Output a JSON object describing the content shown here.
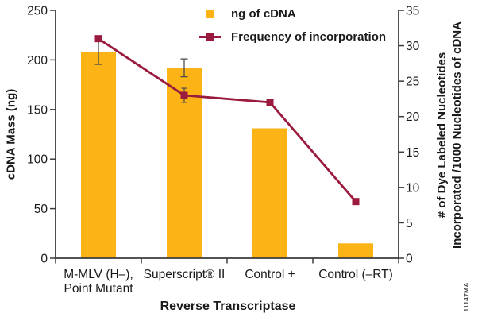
{
  "figure_id": "11147MA",
  "colors": {
    "bar": "#FBB316",
    "line": "#9A1B3E",
    "error_bar": "#4D4D4D",
    "axis": "#3C3C3C",
    "text": "#1A1A1A"
  },
  "chart_data": {
    "type": "bar-line-combo",
    "grid": false,
    "legend_position": "top-right",
    "x_axis": {
      "title": "Reverse Transcriptase",
      "categories": [
        "M-MLV (H–),\nPoint Mutant",
        "Superscript® II",
        "Control +",
        "Control (–RT)"
      ]
    },
    "left_axis": {
      "title": "cDNA Mass (ng)",
      "min": 0,
      "max": 250,
      "step": 50,
      "tick_labels": [
        "0",
        "50",
        "100",
        "150",
        "200",
        "250"
      ]
    },
    "right_axis": {
      "title_line1": "# of Dye Labeled Nucleotides",
      "title_line2": "Incorporated /1000 Nucleotides of cDNA",
      "min": 0,
      "max": 35,
      "step": 5,
      "tick_labels": [
        "0",
        "5",
        "10",
        "15",
        "20",
        "25",
        "30",
        "35"
      ]
    },
    "series": [
      {
        "name": "ng of cDNA",
        "type": "bar",
        "axis": "left",
        "values": [
          208,
          192,
          131,
          15
        ],
        "errors": [
          12.5,
          9,
          null,
          null
        ]
      },
      {
        "name": "Frequency of incorporation",
        "type": "line",
        "axis": "right",
        "values": [
          31,
          23,
          22,
          8
        ],
        "errors": [
          null,
          1,
          null,
          null
        ]
      }
    ]
  }
}
